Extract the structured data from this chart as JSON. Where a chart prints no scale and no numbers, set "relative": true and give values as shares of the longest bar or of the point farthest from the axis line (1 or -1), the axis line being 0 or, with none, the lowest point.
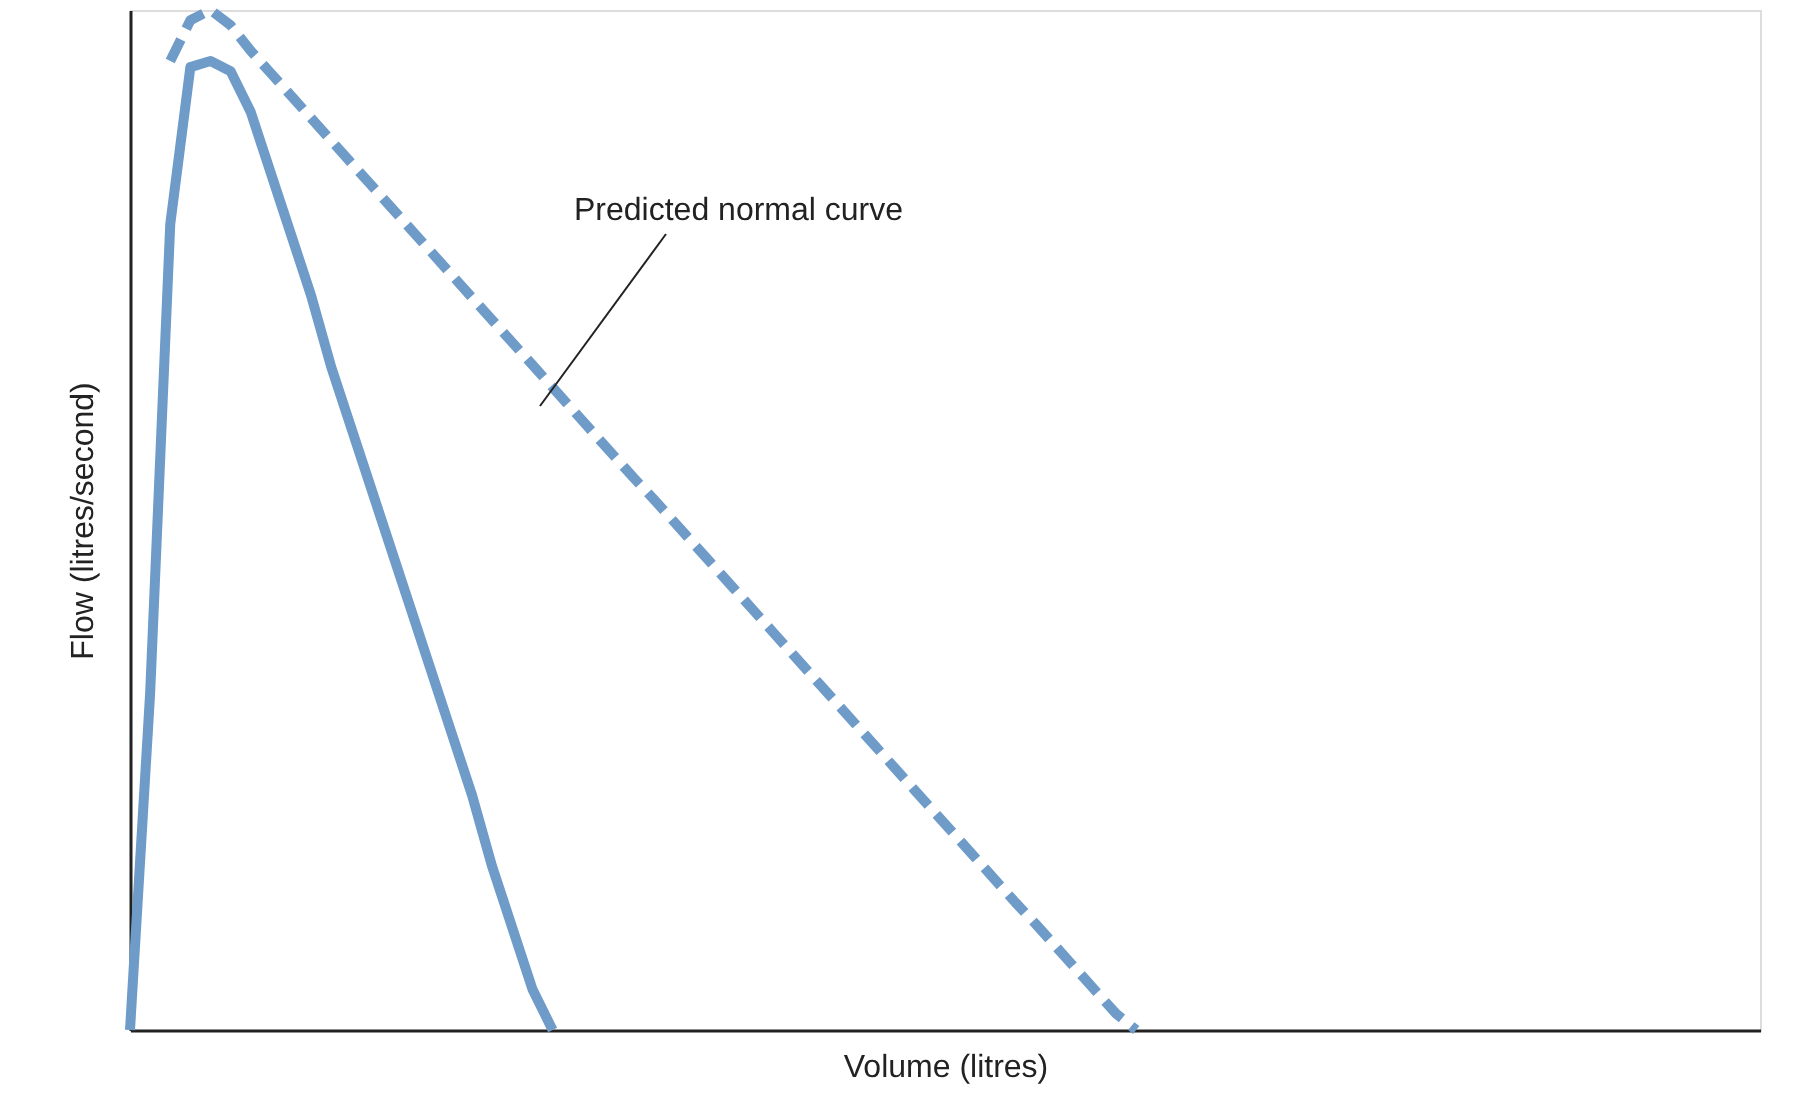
{
  "chart_data": {
    "type": "line",
    "relative": true,
    "xlabel": "Volume (litres)",
    "ylabel": "Flow (litres/second)",
    "annotations": [
      "Predicted normal curve"
    ],
    "categories": [
      null,
      null,
      null,
      null,
      null,
      null,
      null,
      null,
      null,
      null,
      null,
      null,
      null,
      null,
      null,
      null,
      null,
      null,
      null,
      null,
      null,
      null,
      null,
      null,
      null,
      null,
      null,
      null,
      null,
      null,
      null,
      null,
      null,
      null,
      null,
      null,
      null,
      null,
      null,
      null,
      null,
      null,
      null,
      null,
      null,
      null,
      null,
      null,
      null,
      null,
      null,
      null,
      null,
      null,
      null,
      null,
      null,
      null,
      null,
      null,
      null,
      null,
      null,
      null,
      null,
      null,
      null,
      null,
      null,
      null,
      null,
      null,
      null,
      null,
      null,
      null,
      null,
      null,
      null,
      null,
      null,
      null
    ],
    "series": [
      {
        "color": "#6f9bc8",
        "line_style": "solid",
        "values": [
          0,
          0.33,
          0.79,
          0.944,
          0.95,
          0.94,
          0.9,
          0.84,
          0.78,
          0.72,
          0.65,
          0.59,
          0.53,
          0.47,
          0.41,
          0.35,
          0.29,
          0.23,
          0.16,
          0.1,
          0.04,
          0,
          null,
          null,
          null,
          null,
          null,
          null,
          null,
          null,
          null,
          null,
          null,
          null,
          null,
          null,
          null,
          null,
          null,
          null,
          null,
          null,
          null,
          null,
          null,
          null,
          null,
          null,
          null,
          null,
          null,
          null,
          null,
          null,
          null,
          null,
          null,
          null,
          null,
          null,
          null,
          null,
          null,
          null,
          null,
          null,
          null,
          null,
          null,
          null,
          null,
          null,
          null,
          null,
          null,
          null,
          null,
          null,
          null,
          null,
          null,
          null
        ]
      },
      {
        "color": "#6f9bc8",
        "line_style": "dashed",
        "values": [
          null,
          null,
          0.95,
          0.99,
          1,
          0.985,
          0.96,
          0.938,
          0.916,
          0.894,
          0.872,
          0.85,
          0.828,
          0.806,
          0.784,
          0.762,
          0.74,
          0.718,
          0.696,
          0.674,
          0.652,
          0.63,
          0.608,
          0.586,
          0.564,
          0.542,
          0.521,
          0.499,
          0.477,
          0.455,
          0.433,
          0.411,
          0.389,
          0.367,
          0.345,
          0.323,
          0.301,
          0.279,
          0.257,
          0.235,
          0.213,
          0.191,
          0.169,
          0.147,
          0.125,
          0.104,
          0.082,
          0.06,
          0.038,
          0.016,
          0,
          null,
          null,
          null,
          null,
          null,
          null,
          null,
          null,
          null,
          null,
          null,
          null,
          null,
          null,
          null,
          null,
          null,
          null,
          null,
          null,
          null,
          null,
          null,
          null,
          null,
          null,
          null,
          null,
          null,
          null,
          null
        ]
      }
    ]
  }
}
